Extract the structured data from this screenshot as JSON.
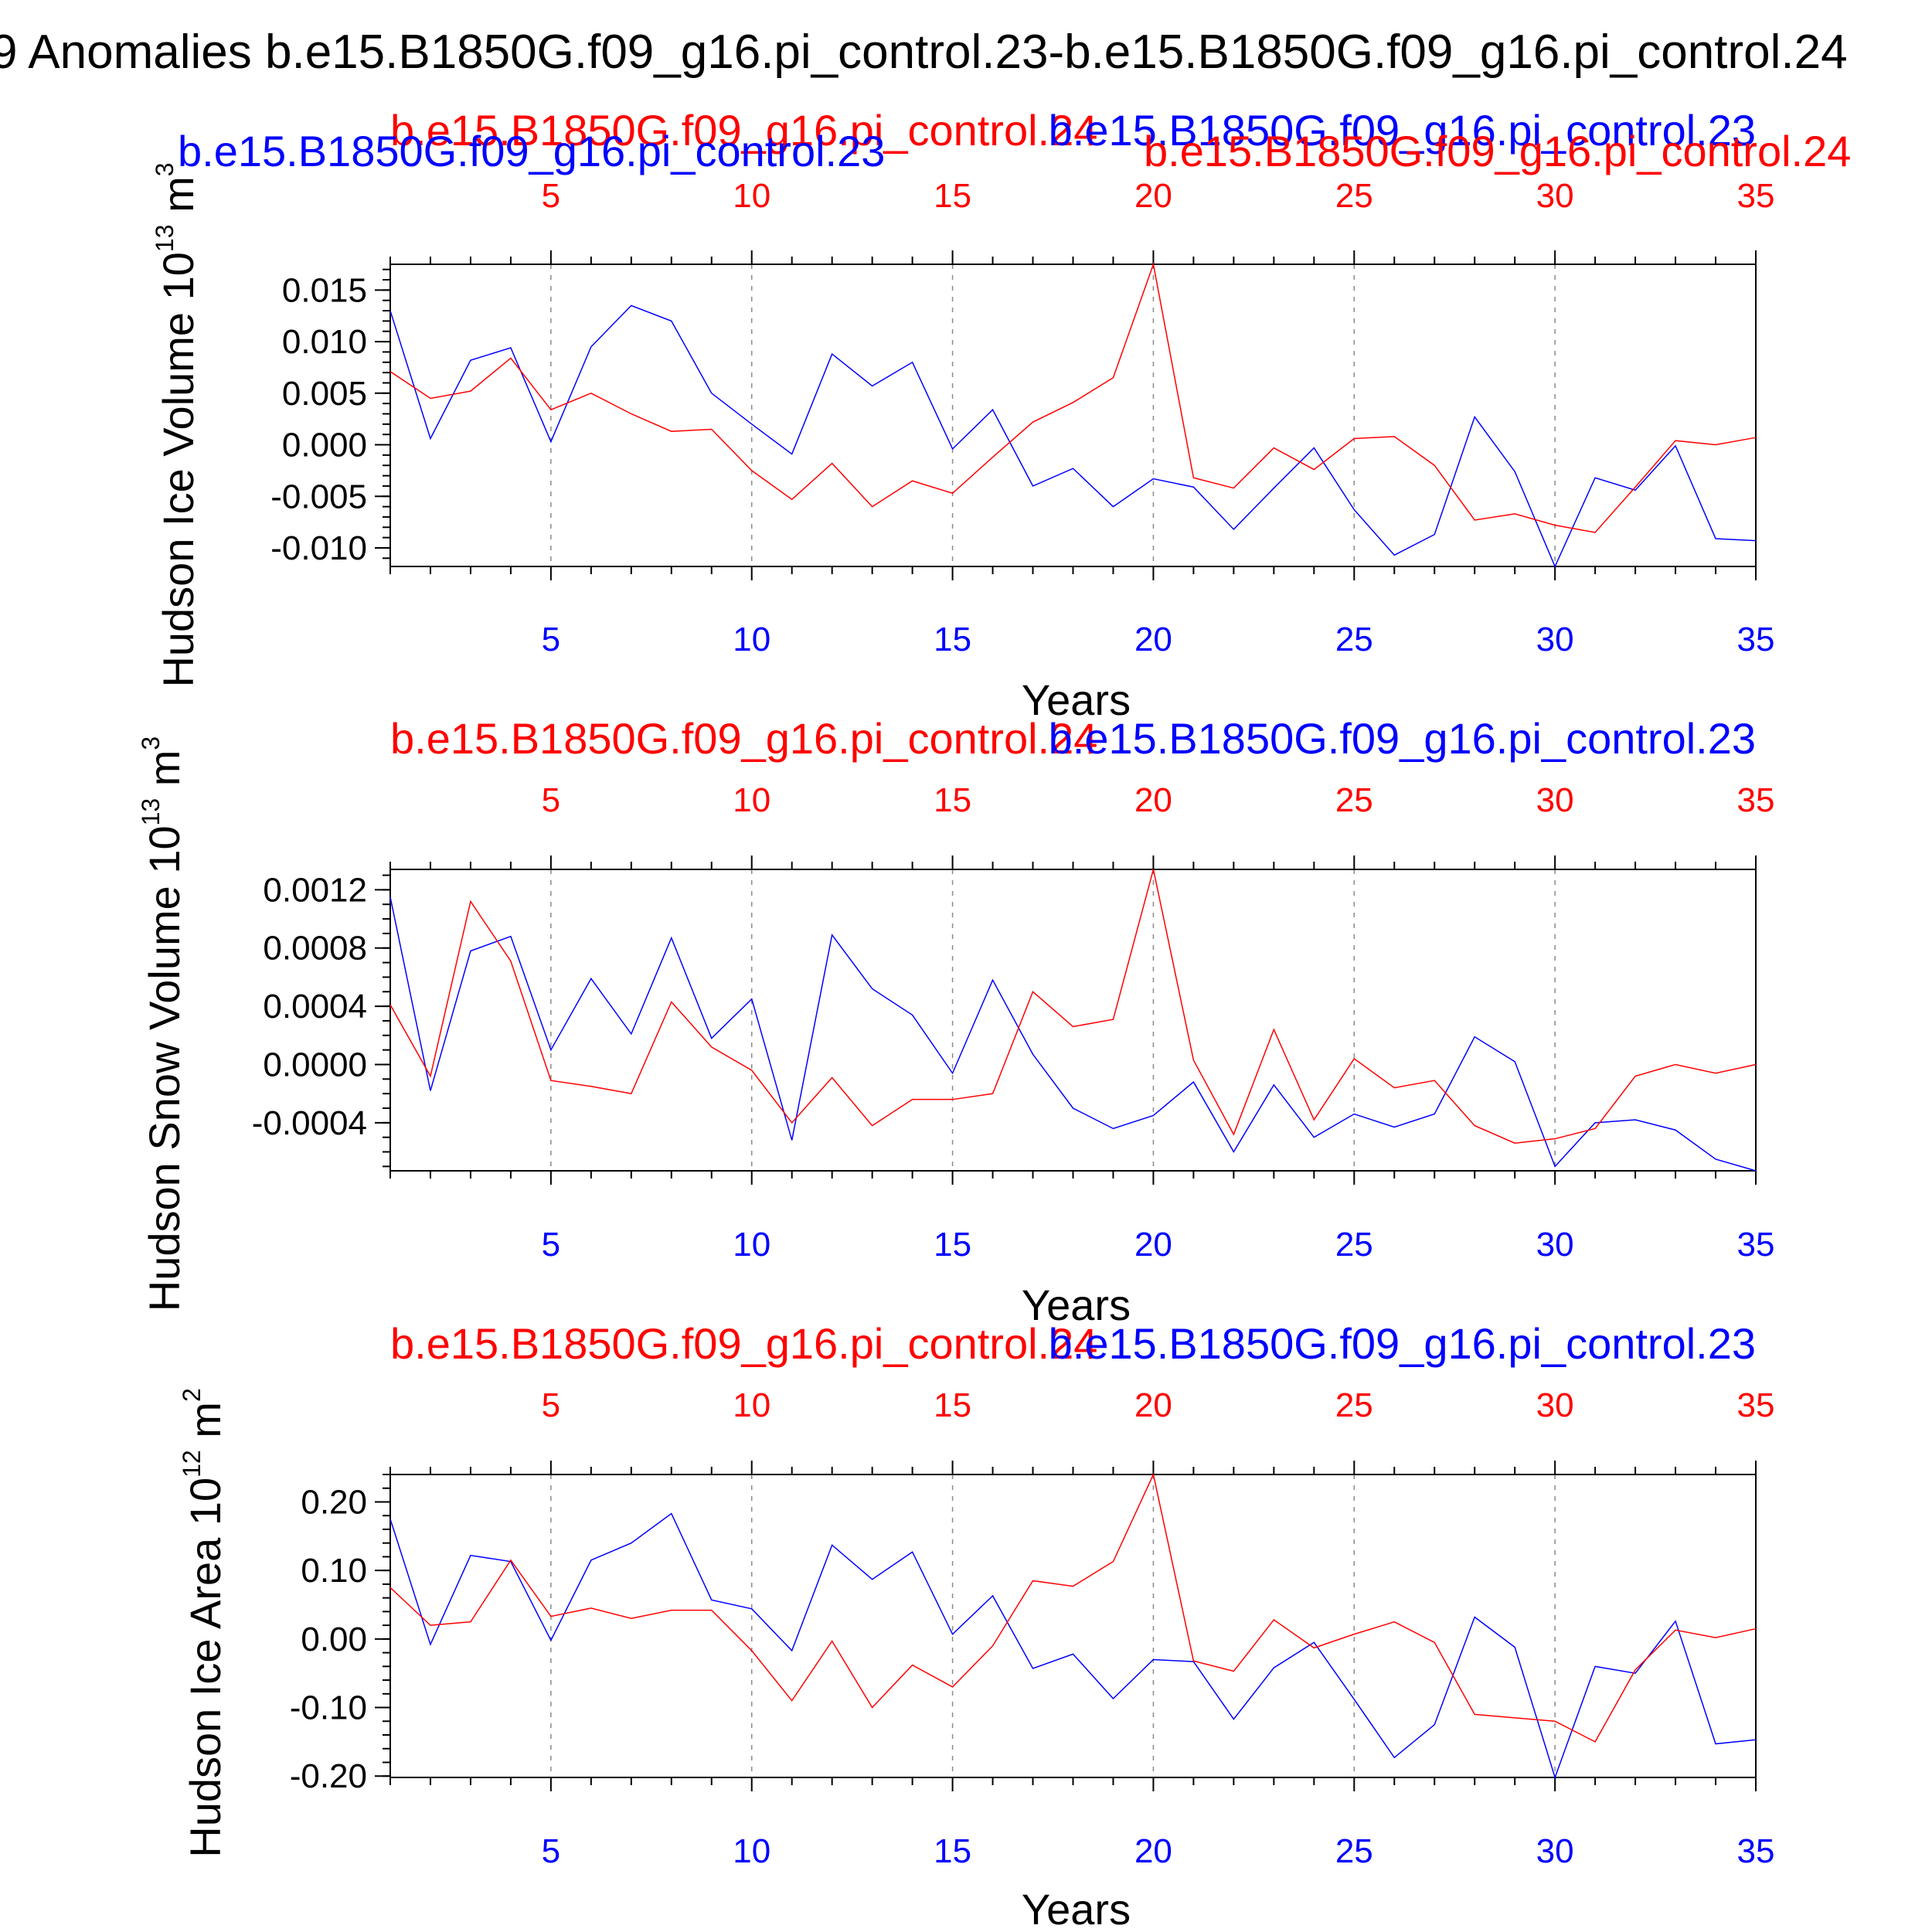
{
  "title": "9 Anomalies b.e15.B1850G.f09_g16.pi_control.23-b.e15.B1850G.f09_g16.pi_control.24",
  "colors": {
    "run23": "#0000ff",
    "run24": "#ff0000",
    "axes": "#000000",
    "grid": "#8a8a8a"
  },
  "chart_data": [
    {
      "type": "line",
      "ylabel": "Hudson Ice Volume 10^13 m^3",
      "ylabel_main": "Hudson Ice Volume 10",
      "ylabel_exp": "13",
      "ylabel_unit": " m",
      "ylabel_unit_exp": "3",
      "xlabel": "Years",
      "top_title_left": "b.e15.B1850G.f09_g16.pi_control.24",
      "top_title_right": "b.e15.B1850G.f09_g16.pi_control.23",
      "extra_title_left": "b.e15.B1850G.f09_g16.pi_control.23",
      "extra_title_right": "b.e15.B1850G.f09_g16.pi_control.24",
      "xlim": [
        1,
        35
      ],
      "ylim": [
        -0.0118,
        0.0175
      ],
      "yticks": [
        -0.01,
        -0.005,
        0.0,
        0.005,
        0.01,
        0.015
      ],
      "ytick_labels": [
        "-0.010",
        "-0.005",
        "0.000",
        "0.005",
        "0.010",
        "0.015"
      ],
      "yminor_step": 0.001,
      "xticks": [
        5,
        10,
        15,
        20,
        25,
        30,
        35
      ],
      "xtick_labels": [
        "5",
        "10",
        "15",
        "20",
        "25",
        "30",
        "35"
      ],
      "grid": "vertical dashed at major x ticks",
      "x": [
        1,
        2,
        3,
        4,
        5,
        6,
        7,
        8,
        9,
        10,
        11,
        12,
        13,
        14,
        15,
        16,
        17,
        18,
        19,
        20,
        21,
        22,
        23,
        24,
        25,
        26,
        27,
        28,
        29,
        30,
        31,
        32,
        33,
        34,
        35
      ],
      "series": [
        {
          "name": "b.e15.B1850G.f09_g16.pi_control.23",
          "color": "#0000ff",
          "values": [
            0.013,
            0.0006,
            0.0082,
            0.0094,
            0.0003,
            0.0095,
            0.0135,
            0.012,
            0.005,
            0.002,
            -0.0009,
            0.0088,
            0.0057,
            0.008,
            -0.0004,
            0.0034,
            -0.004,
            -0.0023,
            -0.006,
            -0.0033,
            -0.0041,
            -0.0082,
            -0.0042,
            -0.0003,
            -0.0063,
            -0.0107,
            -0.0087,
            0.0027,
            -0.0026,
            -0.0118,
            -0.0032,
            -0.0044,
            -0.0001,
            -0.0091,
            -0.0093
          ]
        },
        {
          "name": "b.e15.B1850G.f09_g16.pi_control.24",
          "color": "#ff0000",
          "values": [
            0.0071,
            0.0045,
            0.0052,
            0.0084,
            0.0034,
            0.005,
            0.003,
            0.0013,
            0.0015,
            -0.0025,
            -0.0053,
            -0.0018,
            -0.006,
            -0.0035,
            -0.0047,
            -0.0012,
            0.0022,
            0.0041,
            0.0065,
            0.0175,
            -0.0032,
            -0.0042,
            -0.0003,
            -0.0024,
            0.0006,
            0.0008,
            -0.002,
            -0.0073,
            -0.0067,
            -0.0078,
            -0.0085,
            -0.0041,
            0.0004,
            0.0,
            0.0007
          ]
        }
      ]
    },
    {
      "type": "line",
      "ylabel": "Hudson Snow Volume 10^13 m^3",
      "ylabel_main": "Hudson Snow Volume 10",
      "ylabel_exp": "13",
      "ylabel_unit": " m",
      "ylabel_unit_exp": "3",
      "xlabel": "Years",
      "top_title_left": "b.e15.B1850G.f09_g16.pi_control.24",
      "top_title_right": "b.e15.B1850G.f09_g16.pi_control.23",
      "xlim": [
        1,
        35
      ],
      "ylim": [
        -0.00073,
        0.00134
      ],
      "yticks": [
        -0.0004,
        0.0,
        0.0004,
        0.0008,
        0.0012
      ],
      "ytick_labels": [
        "-0.0004",
        "0.0000",
        "0.0004",
        "0.0008",
        "0.0012"
      ],
      "yminor_step": 0.0001,
      "xticks": [
        5,
        10,
        15,
        20,
        25,
        30,
        35
      ],
      "xtick_labels": [
        "5",
        "10",
        "15",
        "20",
        "25",
        "30",
        "35"
      ],
      "grid": "vertical dashed at major x ticks",
      "x": [
        1,
        2,
        3,
        4,
        5,
        6,
        7,
        8,
        9,
        10,
        11,
        12,
        13,
        14,
        15,
        16,
        17,
        18,
        19,
        20,
        21,
        22,
        23,
        24,
        25,
        26,
        27,
        28,
        29,
        30,
        31,
        32,
        33,
        34,
        35
      ],
      "series": [
        {
          "name": "b.e15.B1850G.f09_g16.pi_control.23",
          "color": "#0000ff",
          "values": [
            0.00115,
            -0.00018,
            0.00078,
            0.00088,
            0.0001,
            0.00059,
            0.00021,
            0.00087,
            0.00018,
            0.00045,
            -0.00052,
            0.00089,
            0.00052,
            0.00034,
            -6e-05,
            0.00058,
            7e-05,
            -0.0003,
            -0.00044,
            -0.00035,
            -0.00012,
            -0.0006,
            -0.00014,
            -0.0005,
            -0.00034,
            -0.00043,
            -0.00034,
            0.00019,
            2e-05,
            -0.0007,
            -0.0004,
            -0.00038,
            -0.00045,
            -0.00065,
            -0.00073
          ]
        },
        {
          "name": "b.e15.B1850G.f09_g16.pi_control.24",
          "color": "#ff0000",
          "values": [
            0.00041,
            -8e-05,
            0.00112,
            0.00071,
            -0.00011,
            -0.00015,
            -0.0002,
            0.00043,
            0.00012,
            -4e-05,
            -0.0004,
            -9e-05,
            -0.00042,
            -0.00024,
            -0.00024,
            -0.0002,
            0.0005,
            0.00026,
            0.00031,
            0.00134,
            3e-05,
            -0.00048,
            0.00024,
            -0.00038,
            4e-05,
            -0.00016,
            -0.00011,
            -0.00042,
            -0.00054,
            -0.00051,
            -0.00044,
            -8e-05,
            0.0,
            -6e-05,
            0.0
          ]
        }
      ]
    },
    {
      "type": "line",
      "ylabel": "Hudson Ice Area 10^12 m^2",
      "ylabel_main": "Hudson Ice Area 10",
      "ylabel_exp": "12",
      "ylabel_unit": " m",
      "ylabel_unit_exp": "2",
      "xlabel": "Years",
      "top_title_left": "b.e15.B1850G.f09_g16.pi_control.24",
      "top_title_right": "b.e15.B1850G.f09_g16.pi_control.23",
      "xlim": [
        1,
        35
      ],
      "ylim": [
        -0.202,
        0.24
      ],
      "yticks": [
        -0.2,
        -0.1,
        0.0,
        0.1,
        0.2
      ],
      "ytick_labels": [
        "-0.20",
        "-0.10",
        "0.00",
        "0.10",
        "0.20"
      ],
      "yminor_step": 0.02,
      "xticks": [
        5,
        10,
        15,
        20,
        25,
        30,
        35
      ],
      "xtick_labels": [
        "5",
        "10",
        "15",
        "20",
        "25",
        "30",
        "35"
      ],
      "grid": "vertical dashed at major x ticks",
      "x": [
        1,
        2,
        3,
        4,
        5,
        6,
        7,
        8,
        9,
        10,
        11,
        12,
        13,
        14,
        15,
        16,
        17,
        18,
        19,
        20,
        21,
        22,
        23,
        24,
        25,
        26,
        27,
        28,
        29,
        30,
        31,
        32,
        33,
        34,
        35
      ],
      "series": [
        {
          "name": "b.e15.B1850G.f09_g16.pi_control.23",
          "color": "#0000ff",
          "values": [
            0.175,
            -0.008,
            0.122,
            0.113,
            -0.002,
            0.115,
            0.14,
            0.183,
            0.057,
            0.044,
            -0.017,
            0.137,
            0.087,
            0.127,
            0.007,
            0.063,
            -0.043,
            -0.022,
            -0.087,
            -0.03,
            -0.033,
            -0.117,
            -0.042,
            -0.005,
            -0.088,
            -0.173,
            -0.125,
            0.032,
            -0.012,
            -0.202,
            -0.04,
            -0.05,
            0.026,
            -0.153,
            -0.147
          ]
        },
        {
          "name": "b.e15.B1850G.f09_g16.pi_control.24",
          "color": "#ff0000",
          "values": [
            0.075,
            0.02,
            0.025,
            0.115,
            0.033,
            0.045,
            0.03,
            0.042,
            0.042,
            -0.017,
            -0.09,
            -0.003,
            -0.1,
            -0.038,
            -0.07,
            -0.01,
            0.085,
            0.077,
            0.113,
            0.24,
            -0.032,
            -0.047,
            0.028,
            -0.013,
            0.007,
            0.025,
            -0.005,
            -0.11,
            -0.115,
            -0.12,
            -0.15,
            -0.045,
            0.013,
            0.002,
            0.015
          ]
        }
      ]
    }
  ]
}
